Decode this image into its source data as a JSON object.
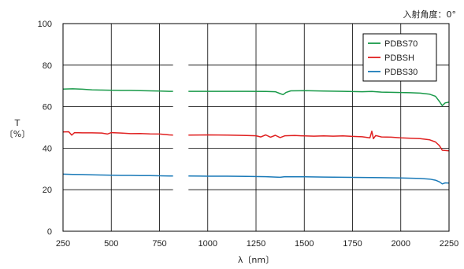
{
  "chart_data": {
    "type": "line",
    "title": "",
    "annotation": "入射角度：0°",
    "xlabel": "λ〔nm〕",
    "ylabel_top": "T",
    "ylabel_bottom": "〔%〕",
    "xlim": [
      250,
      2250
    ],
    "ylim": [
      0,
      100
    ],
    "xticks": [
      250,
      500,
      750,
      1000,
      1250,
      1500,
      1750,
      2000,
      2250
    ],
    "yticks": [
      0,
      20,
      40,
      60,
      80,
      100
    ],
    "grid": true,
    "legend_position": "top-right",
    "gap": [
      820,
      900
    ],
    "series": [
      {
        "name": "PDBS70",
        "color": "#1a9a4a",
        "points": [
          [
            250,
            68.5
          ],
          [
            300,
            68.6
          ],
          [
            350,
            68.4
          ],
          [
            400,
            68.1
          ],
          [
            450,
            68.0
          ],
          [
            500,
            67.9
          ],
          [
            550,
            67.8
          ],
          [
            600,
            67.8
          ],
          [
            650,
            67.7
          ],
          [
            700,
            67.6
          ],
          [
            750,
            67.5
          ],
          [
            800,
            67.4
          ],
          [
            820,
            67.4
          ],
          [
            900,
            67.4
          ],
          [
            1000,
            67.4
          ],
          [
            1100,
            67.4
          ],
          [
            1200,
            67.4
          ],
          [
            1300,
            67.3
          ],
          [
            1350,
            67.2
          ],
          [
            1375,
            66.3
          ],
          [
            1390,
            65.8
          ],
          [
            1405,
            66.8
          ],
          [
            1430,
            67.6
          ],
          [
            1500,
            67.7
          ],
          [
            1600,
            67.5
          ],
          [
            1700,
            67.4
          ],
          [
            1800,
            67.2
          ],
          [
            1850,
            67.3
          ],
          [
            1900,
            67.0
          ],
          [
            1950,
            66.9
          ],
          [
            2000,
            66.8
          ],
          [
            2050,
            66.7
          ],
          [
            2100,
            66.5
          ],
          [
            2150,
            66.0
          ],
          [
            2180,
            65.0
          ],
          [
            2200,
            62.5
          ],
          [
            2215,
            60.5
          ],
          [
            2230,
            61.8
          ],
          [
            2250,
            62.2
          ]
        ]
      },
      {
        "name": "PDBSH",
        "color": "#e02020",
        "points": [
          [
            250,
            47.8
          ],
          [
            280,
            47.9
          ],
          [
            295,
            46.3
          ],
          [
            310,
            47.5
          ],
          [
            350,
            47.4
          ],
          [
            400,
            47.4
          ],
          [
            450,
            47.3
          ],
          [
            480,
            46.8
          ],
          [
            500,
            47.5
          ],
          [
            550,
            47.3
          ],
          [
            600,
            47.0
          ],
          [
            650,
            47.1
          ],
          [
            700,
            46.9
          ],
          [
            750,
            46.8
          ],
          [
            800,
            46.4
          ],
          [
            820,
            46.3
          ],
          [
            900,
            46.3
          ],
          [
            1000,
            46.4
          ],
          [
            1100,
            46.3
          ],
          [
            1200,
            46.1
          ],
          [
            1250,
            46.0
          ],
          [
            1275,
            45.4
          ],
          [
            1300,
            46.4
          ],
          [
            1325,
            45.3
          ],
          [
            1350,
            46.2
          ],
          [
            1375,
            45.1
          ],
          [
            1400,
            46.0
          ],
          [
            1450,
            46.1
          ],
          [
            1500,
            45.9
          ],
          [
            1550,
            45.8
          ],
          [
            1600,
            45.9
          ],
          [
            1650,
            45.8
          ],
          [
            1700,
            45.9
          ],
          [
            1750,
            45.7
          ],
          [
            1800,
            45.5
          ],
          [
            1840,
            45.0
          ],
          [
            1850,
            48.2
          ],
          [
            1858,
            44.6
          ],
          [
            1870,
            46.1
          ],
          [
            1900,
            45.4
          ],
          [
            1950,
            45.3
          ],
          [
            2000,
            45.0
          ],
          [
            2050,
            44.8
          ],
          [
            2100,
            44.6
          ],
          [
            2150,
            44.0
          ],
          [
            2180,
            43.0
          ],
          [
            2200,
            41.2
          ],
          [
            2215,
            39.0
          ],
          [
            2250,
            38.7
          ]
        ]
      },
      {
        "name": "PDBS30",
        "color": "#1a7ab8",
        "points": [
          [
            250,
            27.5
          ],
          [
            300,
            27.4
          ],
          [
            350,
            27.3
          ],
          [
            400,
            27.2
          ],
          [
            450,
            27.1
          ],
          [
            500,
            27.0
          ],
          [
            550,
            26.9
          ],
          [
            600,
            26.9
          ],
          [
            650,
            26.8
          ],
          [
            700,
            26.8
          ],
          [
            750,
            26.7
          ],
          [
            800,
            26.6
          ],
          [
            820,
            26.6
          ],
          [
            900,
            26.6
          ],
          [
            1000,
            26.5
          ],
          [
            1100,
            26.5
          ],
          [
            1200,
            26.4
          ],
          [
            1300,
            26.3
          ],
          [
            1375,
            26.0
          ],
          [
            1400,
            26.3
          ],
          [
            1500,
            26.2
          ],
          [
            1600,
            26.1
          ],
          [
            1700,
            26.0
          ],
          [
            1800,
            25.9
          ],
          [
            1900,
            25.8
          ],
          [
            2000,
            25.7
          ],
          [
            2100,
            25.4
          ],
          [
            2150,
            25.1
          ],
          [
            2180,
            24.6
          ],
          [
            2200,
            23.8
          ],
          [
            2215,
            22.8
          ],
          [
            2230,
            23.3
          ],
          [
            2250,
            23.2
          ]
        ]
      }
    ]
  }
}
